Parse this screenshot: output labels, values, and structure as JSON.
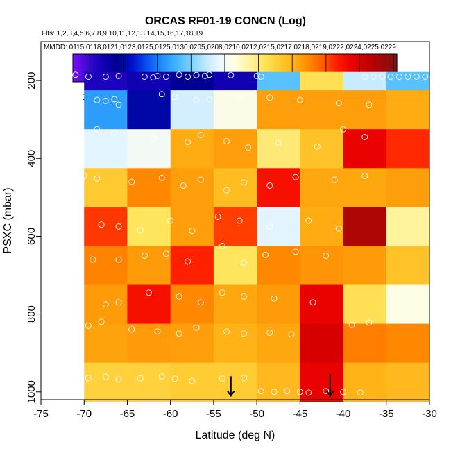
{
  "chart_data": {
    "type": "heatmap",
    "title": "ORCAS RF01-19 CONCN (Log)",
    "flights_label": "Flts: 1,2,3,4,5,6,7,8,9,10,11,12,13,14,15,16,17,18,19",
    "dates_label": "MMDD: 0115,0118,0121,0123,0125,0125,0130,0205,0208,0210,0212,0215,0217,0218,0219,0222,0224,0225,0229",
    "xlabel": "Latitude (deg N)",
    "ylabel": "PSXC (mbar)",
    "xlim": [
      -75,
      -30
    ],
    "ylim": [
      1020,
      100
    ],
    "x_ticks": [
      -75,
      -70,
      -65,
      -60,
      -55,
      -50,
      -45,
      -40,
      -35,
      -30
    ],
    "y_ticks": [
      200,
      400,
      600,
      800,
      1000
    ],
    "colorbar": {
      "min": 1.5,
      "max": 3.42,
      "ticks": [
        1.6,
        1.8,
        2.0,
        2.2,
        2.4,
        2.6,
        2.8,
        3.0,
        3.2,
        3.4
      ],
      "colors": [
        "#7b0ff0",
        "#3d0ad3",
        "#1000b5",
        "#00008c",
        "#0010c8",
        "#0a4cf0",
        "#1f8cf8",
        "#3fb4ff",
        "#7cd0ff",
        "#bfe8ff",
        "#eef8ff",
        "#fffde0",
        "#fff3a0",
        "#ffe35a",
        "#ffcc33",
        "#ffb014",
        "#ff8a00",
        "#ff5a00",
        "#ff1800",
        "#e80000",
        "#c40000",
        "#a00808",
        "#7a1414"
      ]
    },
    "lat_bins": [
      -75,
      -70,
      -65,
      -60,
      -55,
      -50,
      -45,
      -40,
      -35
    ],
    "pressure_bins": [
      100,
      200,
      300,
      400,
      500,
      600,
      700,
      800,
      900,
      1000
    ],
    "cells": [
      [
        null,
        1.65,
        1.68,
        1.75,
        1.68,
        2.15,
        2.65,
        2.3,
        2.15,
        2.55
      ],
      [
        null,
        2.06,
        1.8,
        2.32,
        2.44,
        2.85,
        2.85,
        2.85,
        2.82,
        null
      ],
      [
        null,
        2.35,
        2.4,
        2.82,
        2.85,
        2.6,
        2.75,
        3.15,
        3.05,
        null
      ],
      [
        null,
        2.73,
        2.9,
        2.85,
        2.77,
        3.1,
        2.83,
        2.83,
        2.85,
        null
      ],
      [
        null,
        3.03,
        2.63,
        2.85,
        3.02,
        2.35,
        2.82,
        3.3,
        2.55,
        null
      ],
      [
        null,
        2.91,
        2.86,
        3.06,
        2.63,
        2.9,
        2.87,
        2.86,
        2.75,
        null
      ],
      [
        null,
        2.86,
        3.1,
        2.9,
        2.83,
        2.86,
        3.15,
        2.65,
        2.45,
        null
      ],
      [
        null,
        2.84,
        2.86,
        2.85,
        2.8,
        2.83,
        3.2,
        2.92,
        2.9,
        null
      ],
      [
        null,
        2.7,
        2.7,
        2.72,
        2.72,
        2.78,
        3.15,
        2.8,
        2.78,
        null
      ]
    ],
    "arrows": [
      {
        "lat": -53.0,
        "pressure_from": 960,
        "pressure_to": 1010
      },
      {
        "lat": -41.5,
        "pressure_from": 955,
        "pressure_to": 1010
      }
    ],
    "observations": [
      [
        -71.0,
        185
      ],
      [
        -69.5,
        190
      ],
      [
        -67.5,
        190
      ],
      [
        -66.0,
        188
      ],
      [
        -63.0,
        190
      ],
      [
        -62.0,
        192
      ],
      [
        -61.5,
        188
      ],
      [
        -60.5,
        190
      ],
      [
        -59.0,
        185
      ],
      [
        -58.0,
        190
      ],
      [
        -57.0,
        186
      ],
      [
        -56.0,
        188
      ],
      [
        -55.5,
        185
      ],
      [
        -53.0,
        186
      ],
      [
        -50.0,
        188
      ],
      [
        -49.5,
        190
      ],
      [
        -37.5,
        190
      ],
      [
        -36.5,
        190
      ],
      [
        -35.5,
        190
      ],
      [
        -34.5,
        190
      ],
      [
        -33.5,
        190
      ],
      [
        -32.5,
        190
      ],
      [
        -31.5,
        190
      ],
      [
        -30.5,
        190
      ],
      [
        -72.0,
        240
      ],
      [
        -68.5,
        250
      ],
      [
        -67.5,
        252
      ],
      [
        -66.5,
        248
      ],
      [
        -66.0,
        262
      ],
      [
        -61.0,
        235
      ],
      [
        -59.5,
        242
      ],
      [
        -57.0,
        250
      ],
      [
        -55.5,
        248
      ],
      [
        -52.0,
        246
      ],
      [
        -48.5,
        244
      ],
      [
        -45.0,
        250
      ],
      [
        -40.5,
        258
      ],
      [
        -37.0,
        262
      ],
      [
        -72.5,
        330
      ],
      [
        -70.5,
        336
      ],
      [
        -68.5,
        325
      ],
      [
        -66.5,
        335
      ],
      [
        -62.0,
        348
      ],
      [
        -58.0,
        358
      ],
      [
        -56.5,
        340
      ],
      [
        -53.5,
        356
      ],
      [
        -51.0,
        372
      ],
      [
        -47.5,
        360
      ],
      [
        -43.0,
        370
      ],
      [
        -40.0,
        325
      ],
      [
        -37.5,
        345
      ],
      [
        -72.5,
        440
      ],
      [
        -70.0,
        445
      ],
      [
        -68.5,
        452
      ],
      [
        -64.5,
        460
      ],
      [
        -61.0,
        450
      ],
      [
        -58.5,
        470
      ],
      [
        -56.5,
        455
      ],
      [
        -53.5,
        482
      ],
      [
        -51.5,
        462
      ],
      [
        -48.5,
        470
      ],
      [
        -45.5,
        448
      ],
      [
        -41.0,
        455
      ],
      [
        -37.5,
        445
      ],
      [
        -73.5,
        548
      ],
      [
        -70.5,
        570
      ],
      [
        -68.0,
        570
      ],
      [
        -66.0,
        575
      ],
      [
        -63.5,
        585
      ],
      [
        -60.0,
        560
      ],
      [
        -57.5,
        586
      ],
      [
        -54.5,
        550
      ],
      [
        -52.0,
        560
      ],
      [
        -48.5,
        575
      ],
      [
        -44.0,
        560
      ],
      [
        -40.5,
        580
      ],
      [
        -72.0,
        640
      ],
      [
        -69.0,
        660
      ],
      [
        -66.0,
        660
      ],
      [
        -63.0,
        650
      ],
      [
        -60.5,
        645
      ],
      [
        -58.0,
        665
      ],
      [
        -54.0,
        625
      ],
      [
        -51.5,
        668
      ],
      [
        -49.0,
        648
      ],
      [
        -45.5,
        640
      ],
      [
        -42.0,
        650
      ],
      [
        -73.5,
        740
      ],
      [
        -71.0,
        752
      ],
      [
        -67.5,
        775
      ],
      [
        -66.0,
        770
      ],
      [
        -62.5,
        745
      ],
      [
        -59.0,
        755
      ],
      [
        -56.5,
        770
      ],
      [
        -54.0,
        745
      ],
      [
        -51.5,
        755
      ],
      [
        -48.0,
        760
      ],
      [
        -43.5,
        770
      ],
      [
        -72.5,
        810
      ],
      [
        -69.5,
        830
      ],
      [
        -68.0,
        820
      ],
      [
        -64.5,
        840
      ],
      [
        -61.5,
        845
      ],
      [
        -59.0,
        850
      ],
      [
        -57.0,
        835
      ],
      [
        -53.5,
        845
      ],
      [
        -51.5,
        850
      ],
      [
        -48.5,
        848
      ],
      [
        -46.0,
        852
      ],
      [
        -39.0,
        828
      ],
      [
        -37.0,
        822
      ],
      [
        -73.0,
        962
      ],
      [
        -71.0,
        966
      ],
      [
        -69.5,
        964
      ],
      [
        -67.5,
        962
      ],
      [
        -66.0,
        968
      ],
      [
        -63.5,
        965
      ],
      [
        -61.0,
        960
      ],
      [
        -59.5,
        966
      ],
      [
        -57.5,
        972
      ],
      [
        -54.0,
        966
      ],
      [
        -51.5,
        964
      ],
      [
        -49.5,
        998
      ],
      [
        -48.0,
        1000
      ],
      [
        -46.5,
        998
      ],
      [
        -45.0,
        1000
      ],
      [
        -44.0,
        1002
      ],
      [
        -42.0,
        998
      ],
      [
        -40.0,
        1000
      ],
      [
        -38.0,
        1002
      ]
    ]
  }
}
